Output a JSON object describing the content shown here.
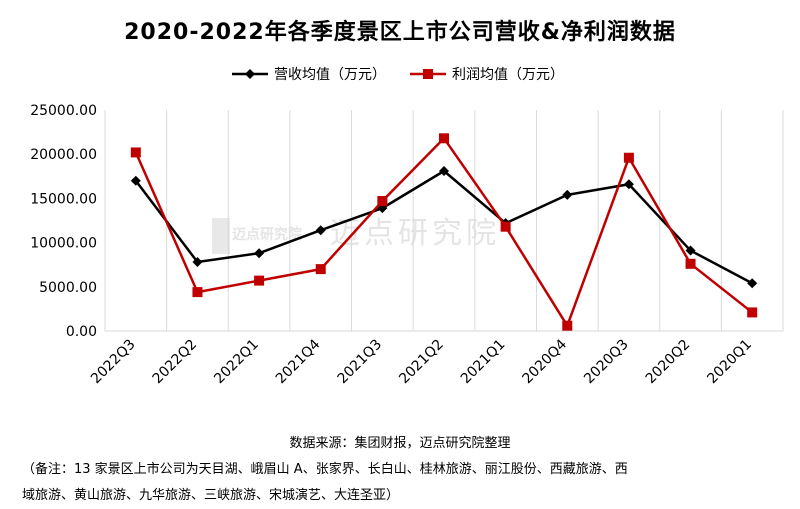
{
  "title": "2020-2022年各季度景区上市公司营收&净利润数据",
  "source_text": "数据来源：集团财报，迈点研究院整理",
  "note_line1": "（备注：13 家景区上市公司为天目湖、峨眉山 A、张家界、长白山、桂林旅游、丽江股份、西藏旅游、西",
  "note_line2": "域旅游、黄山旅游、九华旅游、三峡旅游、宋城演艺、大连圣亚）",
  "watermark": {
    "text": "迈点研究院",
    "logo_text": "迈点研究院"
  },
  "chart_data": {
    "type": "line",
    "categories": [
      "2022Q3",
      "2022Q2",
      "2022Q1",
      "2021Q4",
      "2021Q3",
      "2021Q2",
      "2021Q1",
      "2020Q4",
      "2020Q3",
      "2020Q2",
      "2020Q1"
    ],
    "series": [
      {
        "name": "营收均值（万元）",
        "color": "#000000",
        "marker": "diamond",
        "values": [
          17000,
          7800,
          8800,
          11400,
          13900,
          18100,
          12200,
          15400,
          16600,
          9100,
          5400
        ]
      },
      {
        "name": "利润均值（万元）",
        "color": "#c00000",
        "marker": "square",
        "values": [
          20200,
          4400,
          5700,
          7000,
          14700,
          21800,
          11800,
          600,
          19600,
          7600,
          2100
        ]
      }
    ],
    "ylim": [
      0,
      25000
    ],
    "yticks": [
      0,
      5000,
      10000,
      15000,
      20000,
      25000
    ],
    "ytick_labels": [
      "0.00",
      "5000.00",
      "10000.00",
      "15000.00",
      "20000.00",
      "25000.00"
    ],
    "grid": "vertical",
    "legend_position": "top"
  }
}
